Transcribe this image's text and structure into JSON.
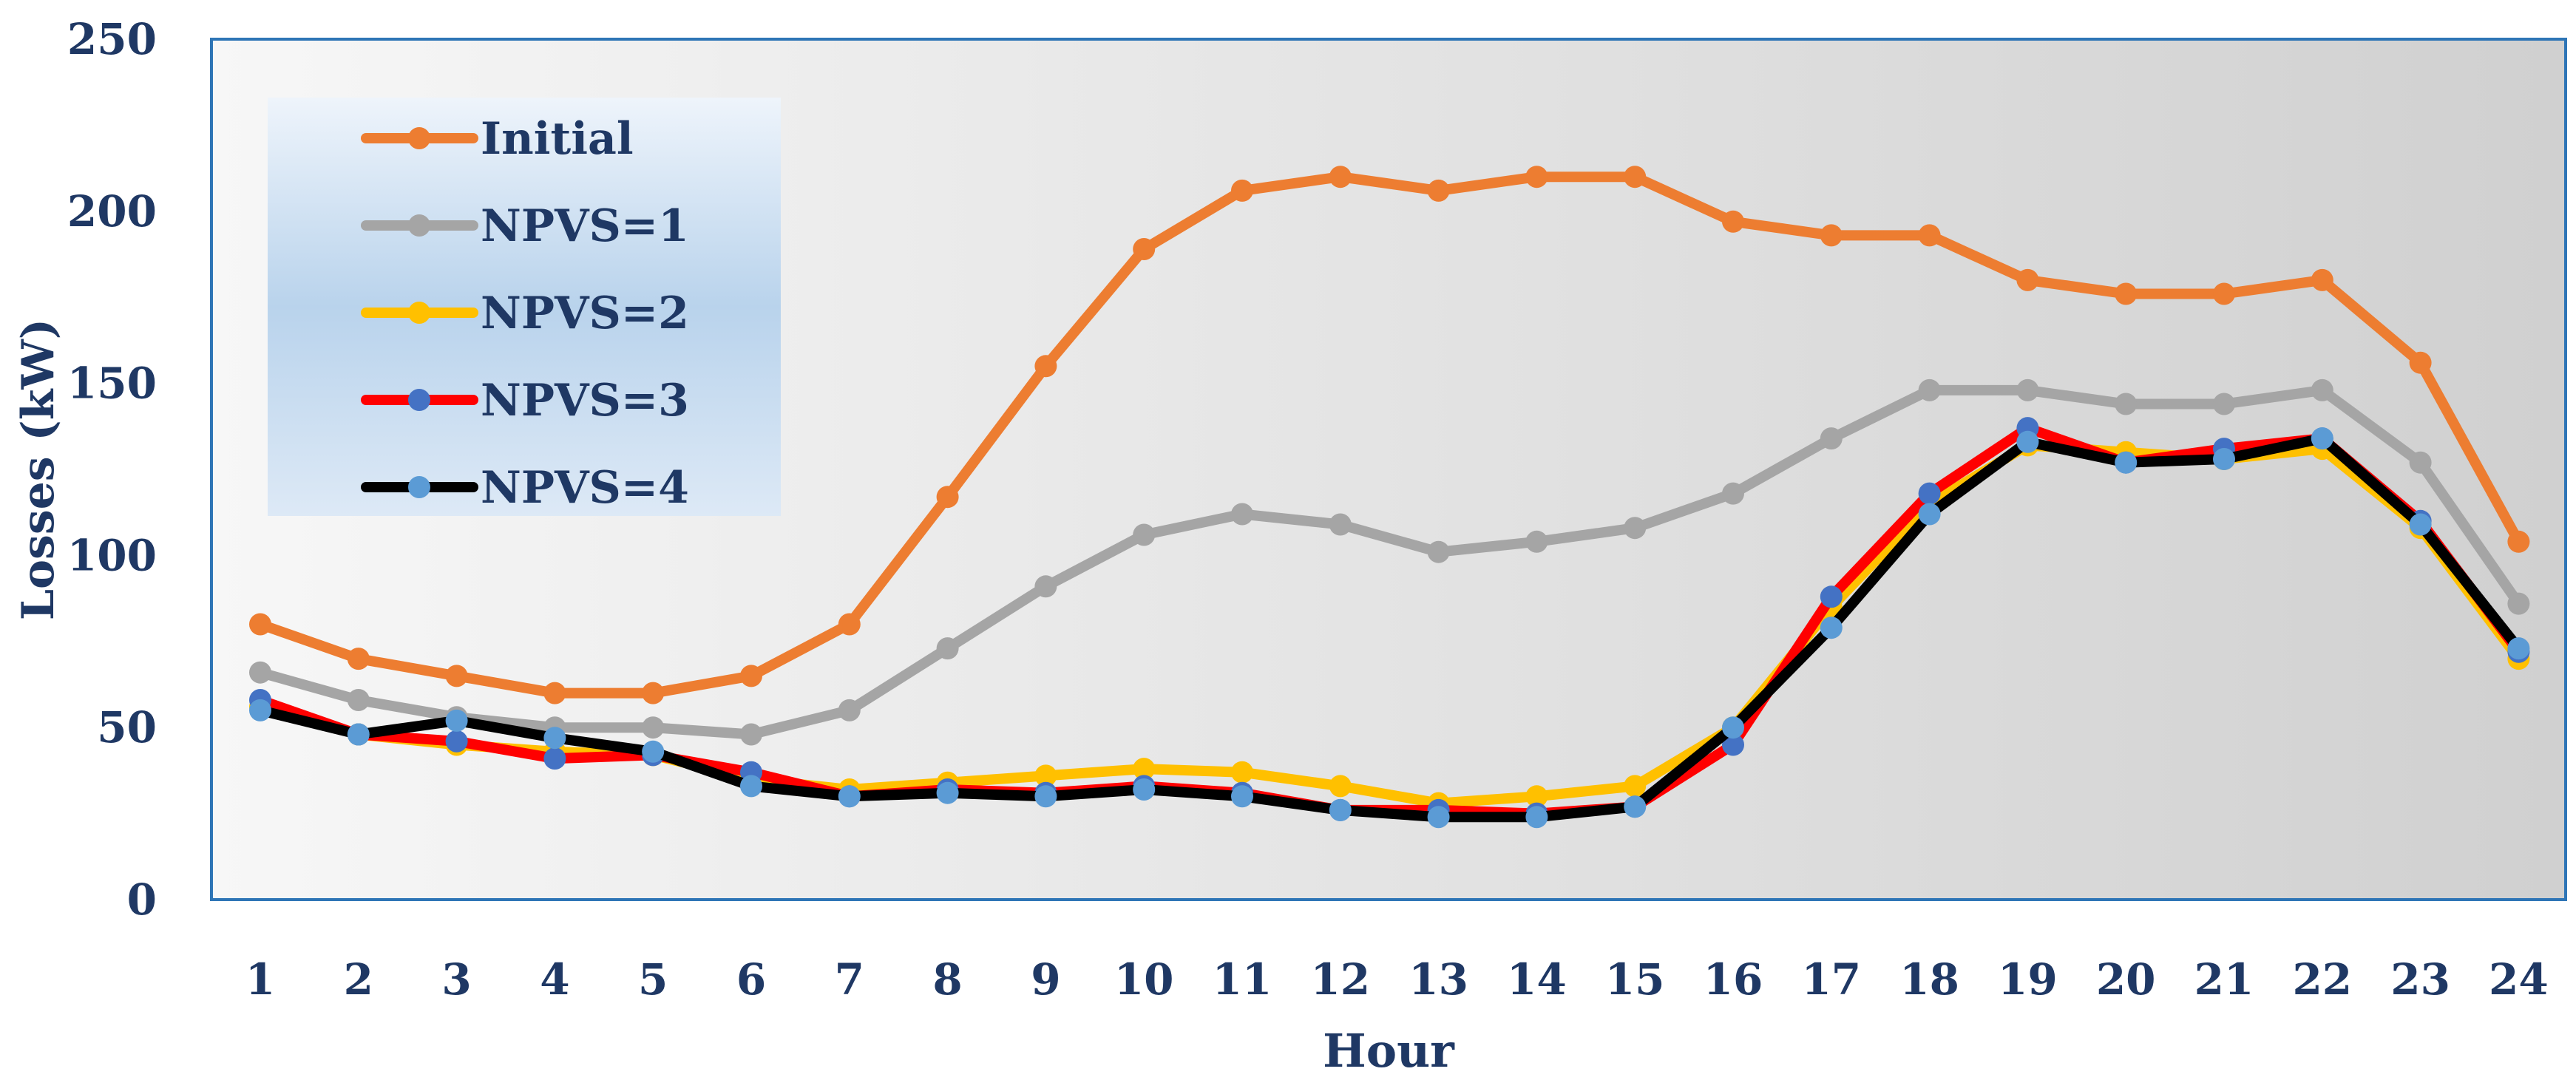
{
  "chart_data": {
    "type": "line",
    "title": "",
    "xlabel": "Hour",
    "ylabel": "Losses (kW)",
    "ylim": [
      0,
      250
    ],
    "yticks": [
      "0",
      "50",
      "100",
      "150",
      "200",
      "250"
    ],
    "categories": [
      "1",
      "2",
      "3",
      "4",
      "5",
      "6",
      "7",
      "8",
      "9",
      "10",
      "11",
      "12",
      "13",
      "14",
      "15",
      "16",
      "17",
      "18",
      "19",
      "20",
      "21",
      "22",
      "23",
      "24"
    ],
    "legend_position": "top-left",
    "grid": false,
    "series": [
      {
        "name": "Initial",
        "line_color": "#ED7D31",
        "marker_color": "#ED7D31",
        "values": [
          80,
          70,
          65,
          60,
          60,
          65,
          80,
          117,
          155,
          189,
          206,
          210,
          206,
          210,
          210,
          197,
          193,
          193,
          180,
          176,
          176,
          180,
          156,
          104
        ]
      },
      {
        "name": "NPVS=1",
        "line_color": "#A5A5A5",
        "marker_color": "#A5A5A5",
        "values": [
          66,
          58,
          53,
          50,
          50,
          48,
          55,
          73,
          91,
          106,
          112,
          109,
          101,
          104,
          108,
          118,
          134,
          148,
          148,
          144,
          144,
          148,
          127,
          86
        ]
      },
      {
        "name": "NPVS=2",
        "line_color": "#FFC000",
        "marker_color": "#FFC000",
        "values": [
          56,
          48,
          45,
          43,
          42,
          35,
          32,
          34,
          36,
          38,
          37,
          33,
          28,
          30,
          33,
          50,
          85,
          115,
          132,
          130,
          128,
          131,
          108,
          70
        ]
      },
      {
        "name": "NPVS=3",
        "line_color": "#FF0000",
        "marker_color": "#4472C4",
        "values": [
          58,
          48,
          46,
          41,
          42,
          37,
          30,
          32,
          31,
          33,
          31,
          26,
          26,
          25,
          27,
          45,
          88,
          118,
          137,
          127,
          131,
          134,
          110,
          72
        ]
      },
      {
        "name": "NPVS=4",
        "line_color": "#000000",
        "marker_color": "#5B9BD5",
        "values": [
          55,
          48,
          52,
          47,
          43,
          33,
          30,
          31,
          30,
          32,
          30,
          26,
          24,
          24,
          27,
          50,
          79,
          112,
          133,
          127,
          128,
          134,
          109,
          73
        ]
      }
    ]
  }
}
